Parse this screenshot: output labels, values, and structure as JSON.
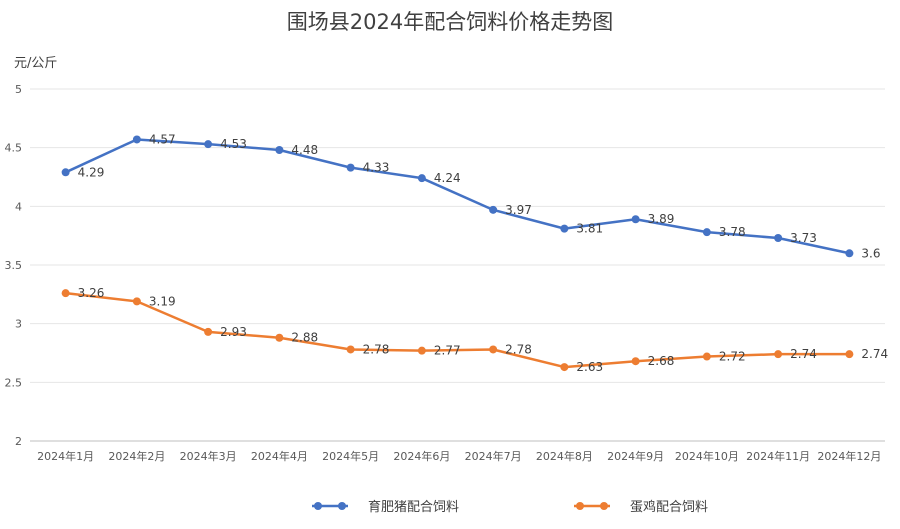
{
  "chart_data": {
    "type": "line",
    "title": "围场县2024年配合饲料价格走势图",
    "ylabel": "元/公斤",
    "xlabel": "",
    "ylim": [
      2,
      5
    ],
    "yticks": [
      "2",
      "2.5",
      "3",
      "3.5",
      "4",
      "4.5",
      "5"
    ],
    "categories": [
      "2024年1月",
      "2024年2月",
      "2024年3月",
      "2024年4月",
      "2024年5月",
      "2024年6月",
      "2024年7月",
      "2024年8月",
      "2024年9月",
      "2024年10月",
      "2024年11月",
      "2024年12月"
    ],
    "grid": true,
    "legend_position": "bottom",
    "series": [
      {
        "name": "育肥猪配合饲料",
        "color": "#4472C4",
        "values": [
          4.29,
          4.57,
          4.53,
          4.48,
          4.33,
          4.24,
          3.97,
          3.81,
          3.89,
          3.78,
          3.73,
          3.6
        ]
      },
      {
        "name": "蛋鸡配合饲料",
        "color": "#ED7D31",
        "values": [
          3.26,
          3.19,
          2.93,
          2.88,
          2.78,
          2.77,
          2.78,
          2.63,
          2.68,
          2.72,
          2.74,
          2.74
        ]
      }
    ]
  }
}
